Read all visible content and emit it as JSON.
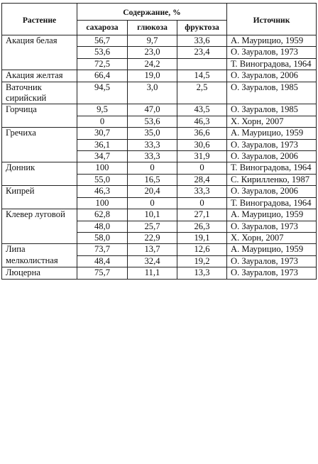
{
  "header": {
    "plant": "Растение",
    "content_group": "Содержание, %",
    "sucrose": "сахароза",
    "glucose": "глюкоза",
    "fructose": "фруктоза",
    "source": "Источник"
  },
  "groups": [
    {
      "plant": "Акация белая",
      "rows": [
        {
          "sucrose": "56,7",
          "glucose": "9,7",
          "fructose": "33,6",
          "source": "А. Маурицио, 1959"
        },
        {
          "sucrose": "53,6",
          "glucose": "23,0",
          "fructose": "23,4",
          "source": "О. Зауралов, 1973"
        },
        {
          "sucrose": "72,5",
          "glucose": "24,2",
          "fructose": "",
          "source": "Т. Виноградова, 1964"
        }
      ]
    },
    {
      "plant": "Акация желтая",
      "rows": [
        {
          "sucrose": "66,4",
          "glucose": "19,0",
          "fructose": "14,5",
          "source": "О. Зауралов, 2006"
        }
      ]
    },
    {
      "plant": "Ваточник сирийский",
      "rows": [
        {
          "sucrose": "94,5",
          "glucose": "3,0",
          "fructose": "2,5",
          "source": "О. Зауралов, 1985"
        }
      ]
    },
    {
      "plant": "Горчица",
      "rows": [
        {
          "sucrose": "9,5",
          "glucose": "47,0",
          "fructose": "43,5",
          "source": "О. Зауралов, 1985"
        },
        {
          "sucrose": "0",
          "glucose": "53,6",
          "fructose": "46,3",
          "source": "Х. Хорн, 2007"
        }
      ]
    },
    {
      "plant": "Гречиха",
      "rows": [
        {
          "sucrose": "30,7",
          "glucose": "35,0",
          "fructose": "36,6",
          "source": "А. Маурицио, 1959"
        },
        {
          "sucrose": "36,1",
          "glucose": "33,3",
          "fructose": "30,6",
          "source": "О. Зауралов, 1973"
        },
        {
          "sucrose": "34,7",
          "glucose": "33,3",
          "fructose": "31,9",
          "source": "О. Зауралов, 2006"
        }
      ]
    },
    {
      "plant": "Донник",
      "rows": [
        {
          "sucrose": "100",
          "glucose": "0",
          "fructose": "0",
          "source": "Т. Виноградова, 1964"
        },
        {
          "sucrose": "55,0",
          "glucose": "16,5",
          "fructose": "28,4",
          "source": "С. Кирилленко, 1987"
        }
      ]
    },
    {
      "plant": "Кипрей",
      "rows": [
        {
          "sucrose": "46,3",
          "glucose": "20,4",
          "fructose": "33,3",
          "source": "О. Зауралов, 2006"
        },
        {
          "sucrose": "100",
          "glucose": "0",
          "fructose": "0",
          "source": "Т. Виноградова, 1964"
        }
      ]
    },
    {
      "plant": "Клевер луговой",
      "rows": [
        {
          "sucrose": "62,8",
          "glucose": "10,1",
          "fructose": "27,1",
          "source": "А. Маурицио, 1959"
        },
        {
          "sucrose": "48,0",
          "glucose": "25,7",
          "fructose": "26,3",
          "source": "О. Зауралов, 1973"
        },
        {
          "sucrose": "58,0",
          "glucose": "22,9",
          "fructose": "19,1",
          "source": "Х. Хорн, 2007"
        }
      ]
    },
    {
      "plant": "Липа мелколистная",
      "rows": [
        {
          "sucrose": "73,7",
          "glucose": "13,7",
          "fructose": "12,6",
          "source": "А. Маурицио, 1959"
        },
        {
          "sucrose": "48,4",
          "glucose": "32,4",
          "fructose": "19,2",
          "source": "О. Зауралов, 1973"
        }
      ]
    },
    {
      "plant": "Люцерна",
      "rows": [
        {
          "sucrose": "75,7",
          "glucose": "11,1",
          "fructose": "13,3",
          "source": "О. Зауралов, 1973"
        }
      ]
    }
  ]
}
